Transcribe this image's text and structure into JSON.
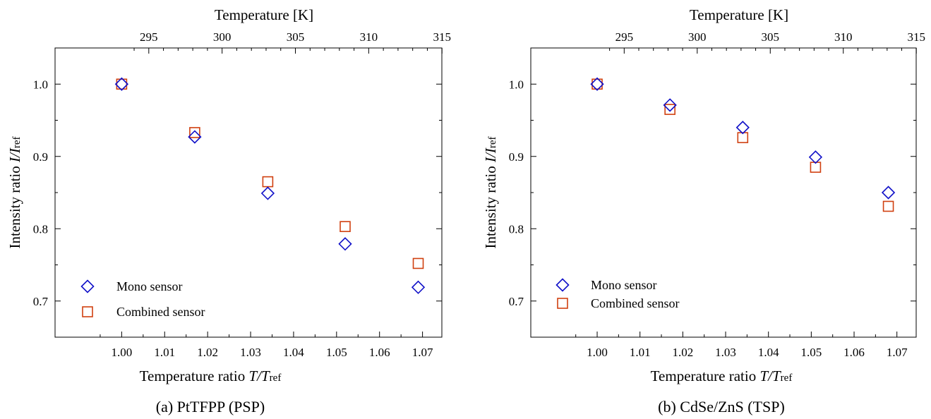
{
  "colors": {
    "mono": "#1010c8",
    "combined": "#d04010",
    "axis": "#000000"
  },
  "chart_data": [
    {
      "type": "scatter",
      "caption": "(a) PtTFPP (PSP)",
      "xlabel_prefix": "Temperature ratio ",
      "xlabel_var": "T/T",
      "xlabel_sub": "ref",
      "ylabel_prefix": "Intensity ratio ",
      "ylabel_var": "I/I",
      "ylabel_sub": "ref",
      "top_xlabel": "Temperature [K]",
      "xlim": [
        0.9845,
        1.0745
      ],
      "ylim": [
        0.65,
        1.05
      ],
      "x_ticks": [
        "1.00",
        "1.01",
        "1.02",
        "1.03",
        "1.04",
        "1.05",
        "1.06",
        "1.07"
      ],
      "y_ticks": [
        "0.7",
        "0.8",
        "0.9",
        "1.0"
      ],
      "top_ticks": [
        "295",
        "300",
        "305",
        "310",
        "315"
      ],
      "series": [
        {
          "name": "Mono sensor",
          "marker": "diamond",
          "x": [
            1.0,
            1.017,
            1.034,
            1.052,
            1.069
          ],
          "y": [
            1.0,
            0.927,
            0.849,
            0.779,
            0.719
          ]
        },
        {
          "name": "Combined sensor",
          "marker": "square",
          "x": [
            1.0,
            1.017,
            1.034,
            1.052,
            1.069
          ],
          "y": [
            1.0,
            0.933,
            0.865,
            0.803,
            0.752
          ]
        }
      ]
    },
    {
      "type": "scatter",
      "caption": "(b) CdSe/ZnS (TSP)",
      "xlabel_prefix": "Temperature ratio ",
      "xlabel_var": "T/T",
      "xlabel_sub": "ref",
      "ylabel_prefix": "Intensity ratio ",
      "ylabel_var": "I/I",
      "ylabel_sub": "ref",
      "top_xlabel": "Temperature [K]",
      "xlim": [
        0.9845,
        1.0745
      ],
      "ylim": [
        0.65,
        1.05
      ],
      "x_ticks": [
        "1.00",
        "1.01",
        "1.02",
        "1.03",
        "1.04",
        "1.05",
        "1.06",
        "1.07"
      ],
      "y_ticks": [
        "0.7",
        "0.8",
        "0.9",
        "1.0"
      ],
      "top_ticks": [
        "295",
        "300",
        "305",
        "310",
        "315"
      ],
      "series": [
        {
          "name": "Mono sensor",
          "marker": "diamond",
          "x": [
            1.0,
            1.017,
            1.034,
            1.051,
            1.068
          ],
          "y": [
            1.0,
            0.971,
            0.94,
            0.899,
            0.85
          ]
        },
        {
          "name": "Combined sensor",
          "marker": "square",
          "x": [
            1.0,
            1.017,
            1.034,
            1.051,
            1.068
          ],
          "y": [
            1.0,
            0.965,
            0.926,
            0.885,
            0.831
          ]
        }
      ]
    }
  ]
}
